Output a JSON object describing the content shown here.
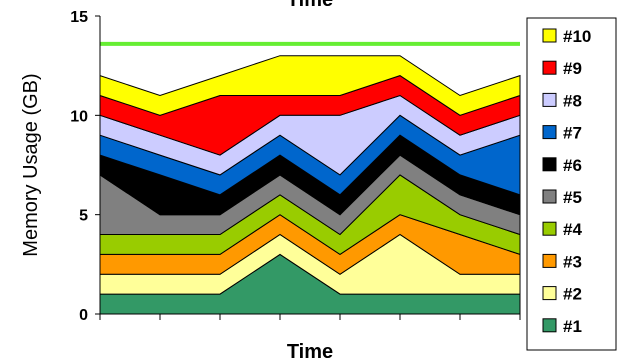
{
  "chart_data": {
    "type": "area",
    "stacked": true,
    "title": "Time",
    "xlabel": "Time",
    "ylabel": "Memory Usage (GB)",
    "ylim": [
      0,
      15
    ],
    "yticks": [
      0,
      5,
      10,
      15
    ],
    "x": [
      0,
      1,
      2,
      3,
      4,
      5,
      6,
      7
    ],
    "grid": false,
    "legend_position": "right",
    "reference_line": {
      "y": 13.6,
      "color": "#66ee33"
    },
    "series": [
      {
        "name": "#1",
        "color": "#339966",
        "values": [
          1,
          1,
          1,
          3,
          1,
          1,
          1,
          1
        ]
      },
      {
        "name": "#2",
        "color": "#ffff99",
        "values": [
          1,
          1,
          1,
          1,
          1,
          3,
          1,
          1
        ]
      },
      {
        "name": "#3",
        "color": "#ff9900",
        "values": [
          1,
          1,
          1,
          1,
          1,
          1,
          2,
          1
        ]
      },
      {
        "name": "#4",
        "color": "#99cc00",
        "values": [
          1,
          1,
          1,
          1,
          1,
          2,
          1,
          1
        ]
      },
      {
        "name": "#5",
        "color": "#808080",
        "values": [
          3,
          1,
          1,
          1,
          1,
          1,
          1,
          1
        ]
      },
      {
        "name": "#6",
        "color": "#000000",
        "values": [
          1,
          2,
          1,
          1,
          1,
          1,
          1,
          1
        ]
      },
      {
        "name": "#7",
        "color": "#0066cc",
        "values": [
          1,
          1,
          1,
          1,
          1,
          1,
          1,
          3
        ]
      },
      {
        "name": "#8",
        "color": "#ccccff",
        "values": [
          1,
          1,
          1,
          1,
          3,
          1,
          1,
          1
        ]
      },
      {
        "name": "#9",
        "color": "#ff0000",
        "values": [
          1,
          1,
          3,
          1,
          1,
          1,
          1,
          1
        ]
      },
      {
        "name": "#10",
        "color": "#ffff00",
        "values": [
          1,
          1,
          1,
          2,
          2,
          1,
          1,
          1
        ]
      }
    ]
  }
}
